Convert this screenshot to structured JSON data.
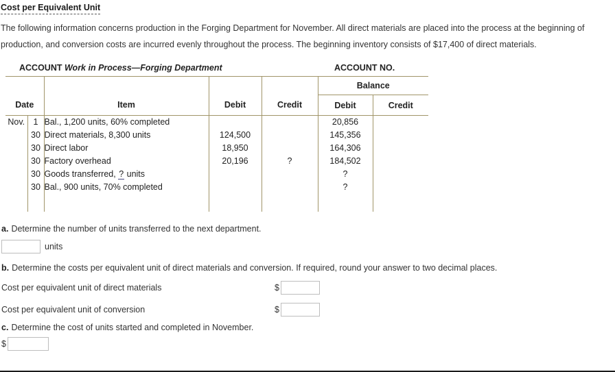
{
  "page": {
    "title": "Cost per Equivalent Unit",
    "intro": "The following information concerns production in the Forging Department for November. All direct materials are placed into the process at the beginning of production, and conversion costs are incurred evenly throughout the process. The beginning inventory consists of $17,400 of direct materials."
  },
  "colors": {
    "table_border": "#a09468",
    "page_bottom_edge": "#1a1a1a"
  },
  "ledger": {
    "account_label": "ACCOUNT",
    "account_name": "Work in Process—Forging Department",
    "account_no_label": "ACCOUNT NO.",
    "headers": {
      "date": "Date",
      "item": "Item",
      "debit": "Debit",
      "credit": "Credit",
      "balance": "Balance",
      "balance_debit": "Debit",
      "balance_credit": "Credit"
    },
    "rows": [
      {
        "month": "Nov.",
        "day": "1",
        "item": "Bal., 1,200 units, 60% completed",
        "debit": "",
        "credit": "",
        "balance_debit": "20,856",
        "balance_credit": ""
      },
      {
        "month": "",
        "day": "30",
        "item": "Direct materials, 8,300 units",
        "debit": "124,500",
        "credit": "",
        "balance_debit": "145,356",
        "balance_credit": ""
      },
      {
        "month": "",
        "day": "30",
        "item": "Direct labor",
        "debit": "18,950",
        "credit": "",
        "balance_debit": "164,306",
        "balance_credit": ""
      },
      {
        "month": "",
        "day": "30",
        "item": "Factory overhead",
        "debit": "20,196",
        "credit": "?",
        "balance_debit": "184,502",
        "balance_credit": ""
      },
      {
        "month": "",
        "day": "30",
        "item": "Goods transferred, ? units",
        "underline_question": true,
        "debit": "",
        "credit": "",
        "balance_debit": "?",
        "balance_credit": ""
      },
      {
        "month": "",
        "day": "30",
        "item": "Bal., 900 units, 70% completed",
        "debit": "",
        "credit": "",
        "balance_debit": "?",
        "balance_credit": ""
      }
    ]
  },
  "questions": {
    "a": {
      "label": "a.",
      "text": "Determine the number of units transferred to the next department.",
      "answer_value": "",
      "unit_suffix": "units"
    },
    "b": {
      "label": "b.",
      "text": "Determine the costs per equivalent unit of direct materials and conversion. If required, round your answer to two decimal places.",
      "rows": [
        {
          "label": "Cost per equivalent unit of direct materials",
          "currency": "$",
          "value": ""
        },
        {
          "label": "Cost per equivalent unit of conversion",
          "currency": "$",
          "value": ""
        }
      ]
    },
    "c": {
      "label": "c.",
      "text": "Determine the cost of units started and completed in November.",
      "currency": "$",
      "value": ""
    }
  }
}
